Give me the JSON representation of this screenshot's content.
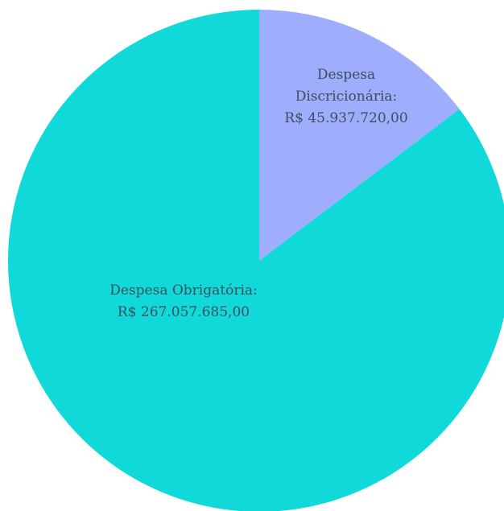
{
  "chart_data": {
    "type": "pie",
    "title": "",
    "currency": "R$",
    "start_angle_deg": 0,
    "direction": "clockwise",
    "slices": [
      {
        "name": "Despesa Discricionária",
        "value": 45937720.0,
        "value_label": "R$ 45.937.720,00",
        "label_lines": [
          "Despesa",
          "Discricionária:",
          "R$ 45.937.720,00"
        ],
        "color": "#9fadfd"
      },
      {
        "name": "Despesa Obrigatória",
        "value": 267057685.0,
        "value_label": "R$ 267.057.685,00",
        "label_lines": [
          "Despesa Obrigatória:",
          "R$ 267.057.685,00"
        ],
        "color": "#12d9d9"
      }
    ]
  }
}
